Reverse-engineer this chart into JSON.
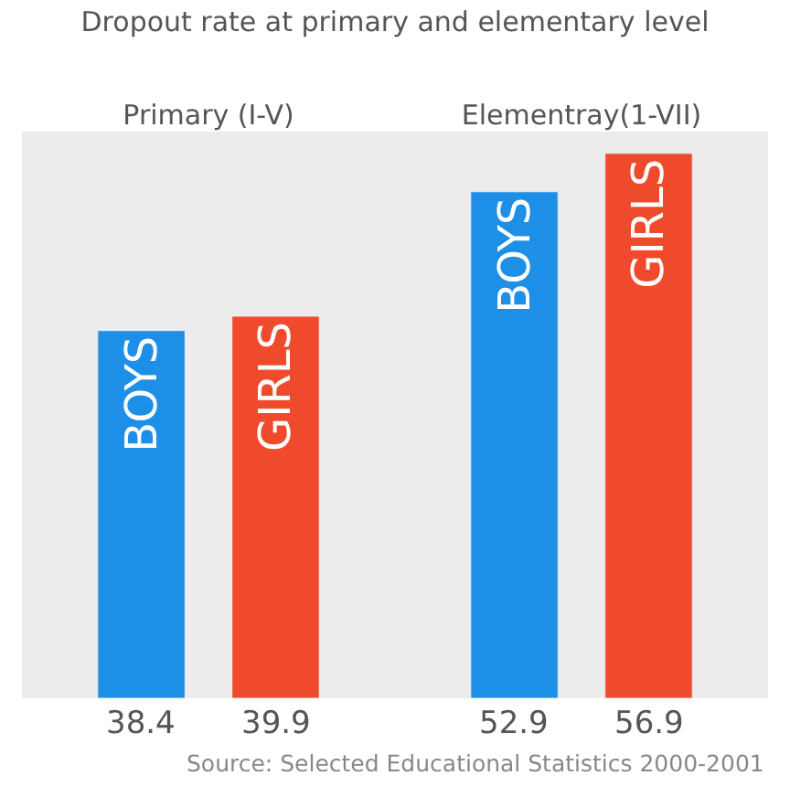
{
  "chart_data": {
    "type": "bar",
    "title": "Dropout rate at primary and elementary level",
    "categories": [
      "Primary (I-V)",
      "Elementray(1-VII)"
    ],
    "series": [
      {
        "name": "BOYS",
        "color": "#1e8fe6",
        "values": [
          38.4,
          52.9
        ]
      },
      {
        "name": "GIRLS",
        "color": "#f04a2c",
        "values": [
          39.9,
          56.9
        ]
      }
    ],
    "data_labels": true,
    "legend": false,
    "grid": false,
    "annotations": [
      "Source: Selected Educational Statistics 2000-2001"
    ]
  }
}
